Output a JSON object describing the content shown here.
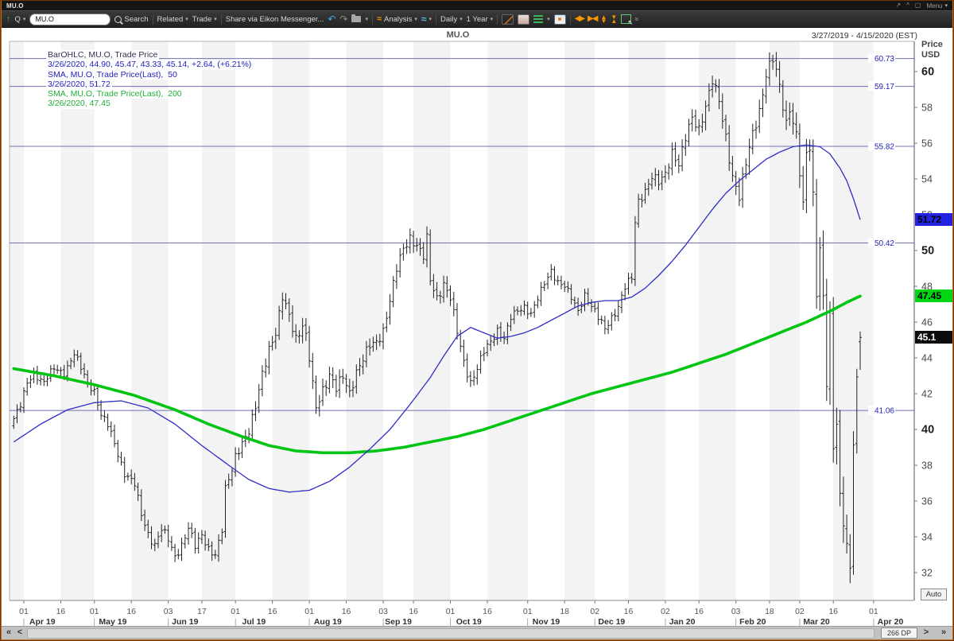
{
  "titlebar": {
    "title": "MU.O",
    "menu_label": "Menu"
  },
  "toolbar": {
    "quote_label": "Q",
    "symbol_input": "MU.O",
    "search_label": "Search",
    "related_label": "Related",
    "trade_label": "Trade",
    "share_label": "Share via Eikon Messenger...",
    "analysis_label": "Analysis",
    "period_label": "Daily",
    "range_label": "1 Year"
  },
  "scrollbar": {
    "dp_label": "266 DP"
  },
  "chart_data": {
    "type": "ohlc-bar",
    "symbol": "MU.O",
    "title": "MU.O",
    "range_label": "3/27/2019 - 4/15/2020 (EST)",
    "axis_unit_line1": "Price",
    "axis_unit_line2": "USD",
    "auto_label": "Auto",
    "legend": [
      {
        "text": "BarOHLC, MU.O, Trade Price",
        "color": "dark"
      },
      {
        "text": "3/26/2020, 44.90, 45.47, 43.33, 45.14, +2.64, (+6.21%)",
        "color": "blue"
      },
      {
        "text": "SMA, MU.O, Trade Price(Last),  50",
        "color": "blue"
      },
      {
        "text": "3/26/2020, 51.72",
        "color": "blue"
      },
      {
        "text": "SMA, MU.O, Trade Price(Last),  200",
        "color": "green"
      },
      {
        "text": "3/26/2020, 47.45",
        "color": "green"
      }
    ],
    "last_bar": {
      "date": "3/26/2020",
      "open": 44.9,
      "high": 45.47,
      "low": 43.33,
      "close": 45.14,
      "change": "+2.64",
      "change_pct": "(+6.21%)"
    },
    "bars_total": 253,
    "slots_total": 267,
    "ylim": [
      30.4,
      61.7
    ],
    "y_axis": {
      "ticks": [
        60,
        58,
        56,
        54,
        52,
        50,
        48,
        46,
        44,
        42,
        40,
        38,
        36,
        34,
        32
      ]
    },
    "x_axis": {
      "ticks": [
        {
          "i": 3,
          "d": "01",
          "b": true
        },
        {
          "i": 14,
          "d": "16"
        },
        {
          "i": 24,
          "d": "01",
          "b": true
        },
        {
          "i": 35,
          "d": "16"
        },
        {
          "i": 46,
          "d": "03",
          "b": true
        },
        {
          "i": 56,
          "d": "17"
        },
        {
          "i": 66,
          "d": "01",
          "b": true
        },
        {
          "i": 77,
          "d": "16"
        },
        {
          "i": 88,
          "d": "01",
          "b": true
        },
        {
          "i": 99,
          "d": "16"
        },
        {
          "i": 110,
          "d": "03",
          "b": true
        },
        {
          "i": 119,
          "d": "16"
        },
        {
          "i": 130,
          "d": "01",
          "b": true
        },
        {
          "i": 141,
          "d": "16"
        },
        {
          "i": 153,
          "d": "01",
          "b": true
        },
        {
          "i": 164,
          "d": "18"
        },
        {
          "i": 173,
          "d": "02",
          "b": true
        },
        {
          "i": 183,
          "d": "16"
        },
        {
          "i": 194,
          "d": "02",
          "b": true
        },
        {
          "i": 204,
          "d": "16"
        },
        {
          "i": 215,
          "d": "03",
          "b": true
        },
        {
          "i": 225,
          "d": "18"
        },
        {
          "i": 234,
          "d": "02",
          "b": true
        },
        {
          "i": 244,
          "d": "16"
        },
        {
          "i": 256,
          "d": "01",
          "b": true
        }
      ],
      "months": [
        {
          "i": 8.5,
          "label": "Apr 19"
        },
        {
          "i": 29.5,
          "label": "May 19"
        },
        {
          "i": 51,
          "label": "Jun 19"
        },
        {
          "i": 71.5,
          "label": "Jul 19"
        },
        {
          "i": 93.5,
          "label": "Aug 19"
        },
        {
          "i": 114.5,
          "label": "Sep 19"
        },
        {
          "i": 135.5,
          "label": "Oct 19"
        },
        {
          "i": 158.5,
          "label": "Nov 19"
        },
        {
          "i": 178,
          "label": "Dec 19"
        },
        {
          "i": 199,
          "label": "Jan 20"
        },
        {
          "i": 220,
          "label": "Feb 20"
        },
        {
          "i": 239,
          "label": "Mar 20"
        },
        {
          "i": 261,
          "label": "Apr 20"
        }
      ]
    },
    "levels": [
      {
        "value": 60.73,
        "label": "60.73"
      },
      {
        "value": 59.17,
        "label": "59.17"
      },
      {
        "value": 55.82,
        "label": "55.82"
      },
      {
        "value": 50.42,
        "label": "50.42"
      },
      {
        "value": 41.06,
        "label": "41.06"
      }
    ],
    "badges": [
      {
        "text": "51.72",
        "price": 51.72,
        "bg": "#2222e0",
        "fg": "#000000"
      },
      {
        "text": "47.45",
        "price": 47.45,
        "bg": "#00d613",
        "fg": "#000000"
      },
      {
        "text": "45.1",
        "price": 45.14,
        "bg": "#0c0c0c",
        "fg": "#ffffff"
      }
    ],
    "close_path": [
      [
        0,
        40.6
      ],
      [
        2,
        41.3
      ],
      [
        4,
        42.6
      ],
      [
        6,
        43.2
      ],
      [
        9,
        42.6
      ],
      [
        12,
        43.4
      ],
      [
        15,
        43.2
      ],
      [
        18,
        44.2
      ],
      [
        20,
        43.4
      ],
      [
        22,
        42.6
      ],
      [
        24,
        42.2
      ],
      [
        26,
        40.8
      ],
      [
        28,
        40.2
      ],
      [
        30,
        39.2
      ],
      [
        33,
        37.6
      ],
      [
        36,
        36.9
      ],
      [
        38,
        35.2
      ],
      [
        40,
        34.2
      ],
      [
        42,
        33.6
      ],
      [
        44,
        34.4
      ],
      [
        46,
        33.8
      ],
      [
        48,
        32.9
      ],
      [
        50,
        33.6
      ],
      [
        52,
        34.5
      ],
      [
        54,
        33.4
      ],
      [
        56,
        34.1
      ],
      [
        58,
        33.4
      ],
      [
        60,
        33.0
      ],
      [
        62,
        34.3
      ],
      [
        63,
        36.6
      ],
      [
        65,
        37.8
      ],
      [
        66,
        38.6
      ],
      [
        68,
        39.3
      ],
      [
        70,
        39.8
      ],
      [
        72,
        41.2
      ],
      [
        74,
        43.2
      ],
      [
        76,
        44.6
      ],
      [
        78,
        45.3
      ],
      [
        80,
        47.3
      ],
      [
        82,
        46.4
      ],
      [
        84,
        45.2
      ],
      [
        86,
        45.8
      ],
      [
        87,
        45.1
      ],
      [
        88,
        43.9
      ],
      [
        89,
        42.4
      ],
      [
        90,
        41.2
      ],
      [
        92,
        42.3
      ],
      [
        94,
        43.1
      ],
      [
        96,
        42.2
      ],
      [
        98,
        42.9
      ],
      [
        100,
        42.1
      ],
      [
        102,
        43.3
      ],
      [
        104,
        43.9
      ],
      [
        106,
        44.6
      ],
      [
        108,
        44.9
      ],
      [
        110,
        45.6
      ],
      [
        112,
        47.2
      ],
      [
        114,
        48.9
      ],
      [
        116,
        50.1
      ],
      [
        118,
        50.8
      ],
      [
        120,
        50.3
      ],
      [
        122,
        49.6
      ],
      [
        123,
        50.6
      ],
      [
        124,
        48.3
      ],
      [
        126,
        47.4
      ],
      [
        128,
        48.2
      ],
      [
        130,
        47.3
      ],
      [
        132,
        45.4
      ],
      [
        134,
        43.8
      ],
      [
        136,
        42.7
      ],
      [
        138,
        43.4
      ],
      [
        140,
        44.3
      ],
      [
        142,
        44.9
      ],
      [
        144,
        45.6
      ],
      [
        146,
        45.1
      ],
      [
        148,
        46.2
      ],
      [
        150,
        46.6
      ],
      [
        152,
        46.9
      ],
      [
        154,
        46.5
      ],
      [
        156,
        47.3
      ],
      [
        158,
        48.1
      ],
      [
        160,
        48.9
      ],
      [
        162,
        48.3
      ],
      [
        164,
        48.0
      ],
      [
        166,
        47.3
      ],
      [
        168,
        46.6
      ],
      [
        170,
        47.6
      ],
      [
        172,
        46.9
      ],
      [
        174,
        46.2
      ],
      [
        176,
        45.6
      ],
      [
        178,
        46.3
      ],
      [
        180,
        46.9
      ],
      [
        182,
        47.9
      ],
      [
        184,
        48.4
      ],
      [
        185,
        51.6
      ],
      [
        186,
        52.8
      ],
      [
        188,
        53.4
      ],
      [
        190,
        54.1
      ],
      [
        192,
        53.7
      ],
      [
        194,
        54.3
      ],
      [
        196,
        55.6
      ],
      [
        198,
        54.8
      ],
      [
        200,
        56.2
      ],
      [
        202,
        57.4
      ],
      [
        204,
        56.9
      ],
      [
        206,
        58.1
      ],
      [
        208,
        59.4
      ],
      [
        210,
        58.3
      ],
      [
        212,
        56.4
      ],
      [
        214,
        54.2
      ],
      [
        216,
        52.9
      ],
      [
        218,
        54.8
      ],
      [
        220,
        56.6
      ],
      [
        222,
        57.9
      ],
      [
        224,
        59.8
      ],
      [
        226,
        60.6
      ],
      [
        228,
        59.2
      ],
      [
        230,
        57.2
      ],
      [
        231,
        58.1
      ],
      [
        233,
        56.3
      ],
      [
        234,
        54.3
      ],
      [
        235,
        52.2
      ],
      [
        236,
        55.4
      ],
      [
        237,
        55.9
      ],
      [
        238,
        53.1
      ],
      [
        239,
        48.1
      ],
      [
        240,
        50.2
      ],
      [
        241,
        47.3
      ],
      [
        242,
        42.6
      ],
      [
        243,
        45.8
      ],
      [
        244,
        38.9
      ],
      [
        245,
        40.3
      ],
      [
        246,
        36.2
      ],
      [
        247,
        35.4
      ],
      [
        248,
        33.6
      ],
      [
        249,
        32.4
      ],
      [
        250,
        39.3
      ],
      [
        251,
        42.5
      ],
      [
        252,
        45.14
      ]
    ],
    "volatility_path": [
      [
        0,
        1.0
      ],
      [
        20,
        1.0
      ],
      [
        40,
        1.2
      ],
      [
        60,
        1.1
      ],
      [
        75,
        1.4
      ],
      [
        90,
        1.6
      ],
      [
        110,
        1.4
      ],
      [
        130,
        1.4
      ],
      [
        150,
        1.0
      ],
      [
        170,
        1.0
      ],
      [
        190,
        1.3
      ],
      [
        210,
        1.6
      ],
      [
        228,
        1.7
      ],
      [
        235,
        2.4
      ],
      [
        240,
        3.0
      ],
      [
        246,
        3.4
      ],
      [
        250,
        2.6
      ],
      [
        252,
        1.1
      ]
    ],
    "sma50": {
      "period": 50,
      "last": 51.72,
      "path": [
        [
          0,
          39.3
        ],
        [
          8,
          40.3
        ],
        [
          16,
          41.1
        ],
        [
          24,
          41.5
        ],
        [
          32,
          41.6
        ],
        [
          40,
          41.2
        ],
        [
          48,
          40.3
        ],
        [
          56,
          39.1
        ],
        [
          64,
          38.0
        ],
        [
          70,
          37.2
        ],
        [
          76,
          36.7
        ],
        [
          82,
          36.5
        ],
        [
          88,
          36.6
        ],
        [
          94,
          37.1
        ],
        [
          100,
          37.9
        ],
        [
          106,
          38.9
        ],
        [
          112,
          40.0
        ],
        [
          118,
          41.4
        ],
        [
          124,
          42.9
        ],
        [
          128,
          44.1
        ],
        [
          132,
          45.2
        ],
        [
          136,
          45.7
        ],
        [
          140,
          45.4
        ],
        [
          144,
          45.1
        ],
        [
          148,
          45.2
        ],
        [
          152,
          45.4
        ],
        [
          156,
          45.7
        ],
        [
          160,
          46.1
        ],
        [
          164,
          46.5
        ],
        [
          168,
          46.9
        ],
        [
          172,
          47.1
        ],
        [
          176,
          47.2
        ],
        [
          180,
          47.2
        ],
        [
          184,
          47.4
        ],
        [
          188,
          47.9
        ],
        [
          192,
          48.6
        ],
        [
          196,
          49.4
        ],
        [
          200,
          50.3
        ],
        [
          204,
          51.3
        ],
        [
          208,
          52.3
        ],
        [
          212,
          53.2
        ],
        [
          216,
          53.9
        ],
        [
          220,
          54.5
        ],
        [
          224,
          55.1
        ],
        [
          228,
          55.5
        ],
        [
          232,
          55.8
        ],
        [
          236,
          55.9
        ],
        [
          240,
          55.8
        ],
        [
          243,
          55.4
        ],
        [
          246,
          54.6
        ],
        [
          248,
          53.9
        ],
        [
          250,
          52.9
        ],
        [
          252,
          51.72
        ]
      ]
    },
    "sma200": {
      "period": 200,
      "last": 47.45,
      "path": [
        [
          0,
          43.4
        ],
        [
          12,
          43.0
        ],
        [
          24,
          42.5
        ],
        [
          36,
          41.9
        ],
        [
          48,
          41.1
        ],
        [
          58,
          40.3
        ],
        [
          68,
          39.6
        ],
        [
          76,
          39.1
        ],
        [
          84,
          38.8
        ],
        [
          92,
          38.7
        ],
        [
          100,
          38.7
        ],
        [
          108,
          38.8
        ],
        [
          116,
          39.0
        ],
        [
          124,
          39.3
        ],
        [
          132,
          39.6
        ],
        [
          140,
          40.0
        ],
        [
          148,
          40.5
        ],
        [
          156,
          41.0
        ],
        [
          164,
          41.5
        ],
        [
          172,
          42.0
        ],
        [
          180,
          42.4
        ],
        [
          188,
          42.8
        ],
        [
          196,
          43.2
        ],
        [
          204,
          43.7
        ],
        [
          212,
          44.2
        ],
        [
          220,
          44.8
        ],
        [
          228,
          45.4
        ],
        [
          236,
          46.0
        ],
        [
          244,
          46.7
        ],
        [
          248,
          47.1
        ],
        [
          252,
          47.45
        ]
      ]
    },
    "colors": {
      "bar": "#232323",
      "sma50": "#2e2ec8",
      "sma200": "#00c513",
      "level_line": "#7070b8",
      "level_text": "#2222bb",
      "stripe": "#f3f3f4",
      "axis_line": "#555555",
      "tick_text": "#4a4a4a"
    }
  }
}
